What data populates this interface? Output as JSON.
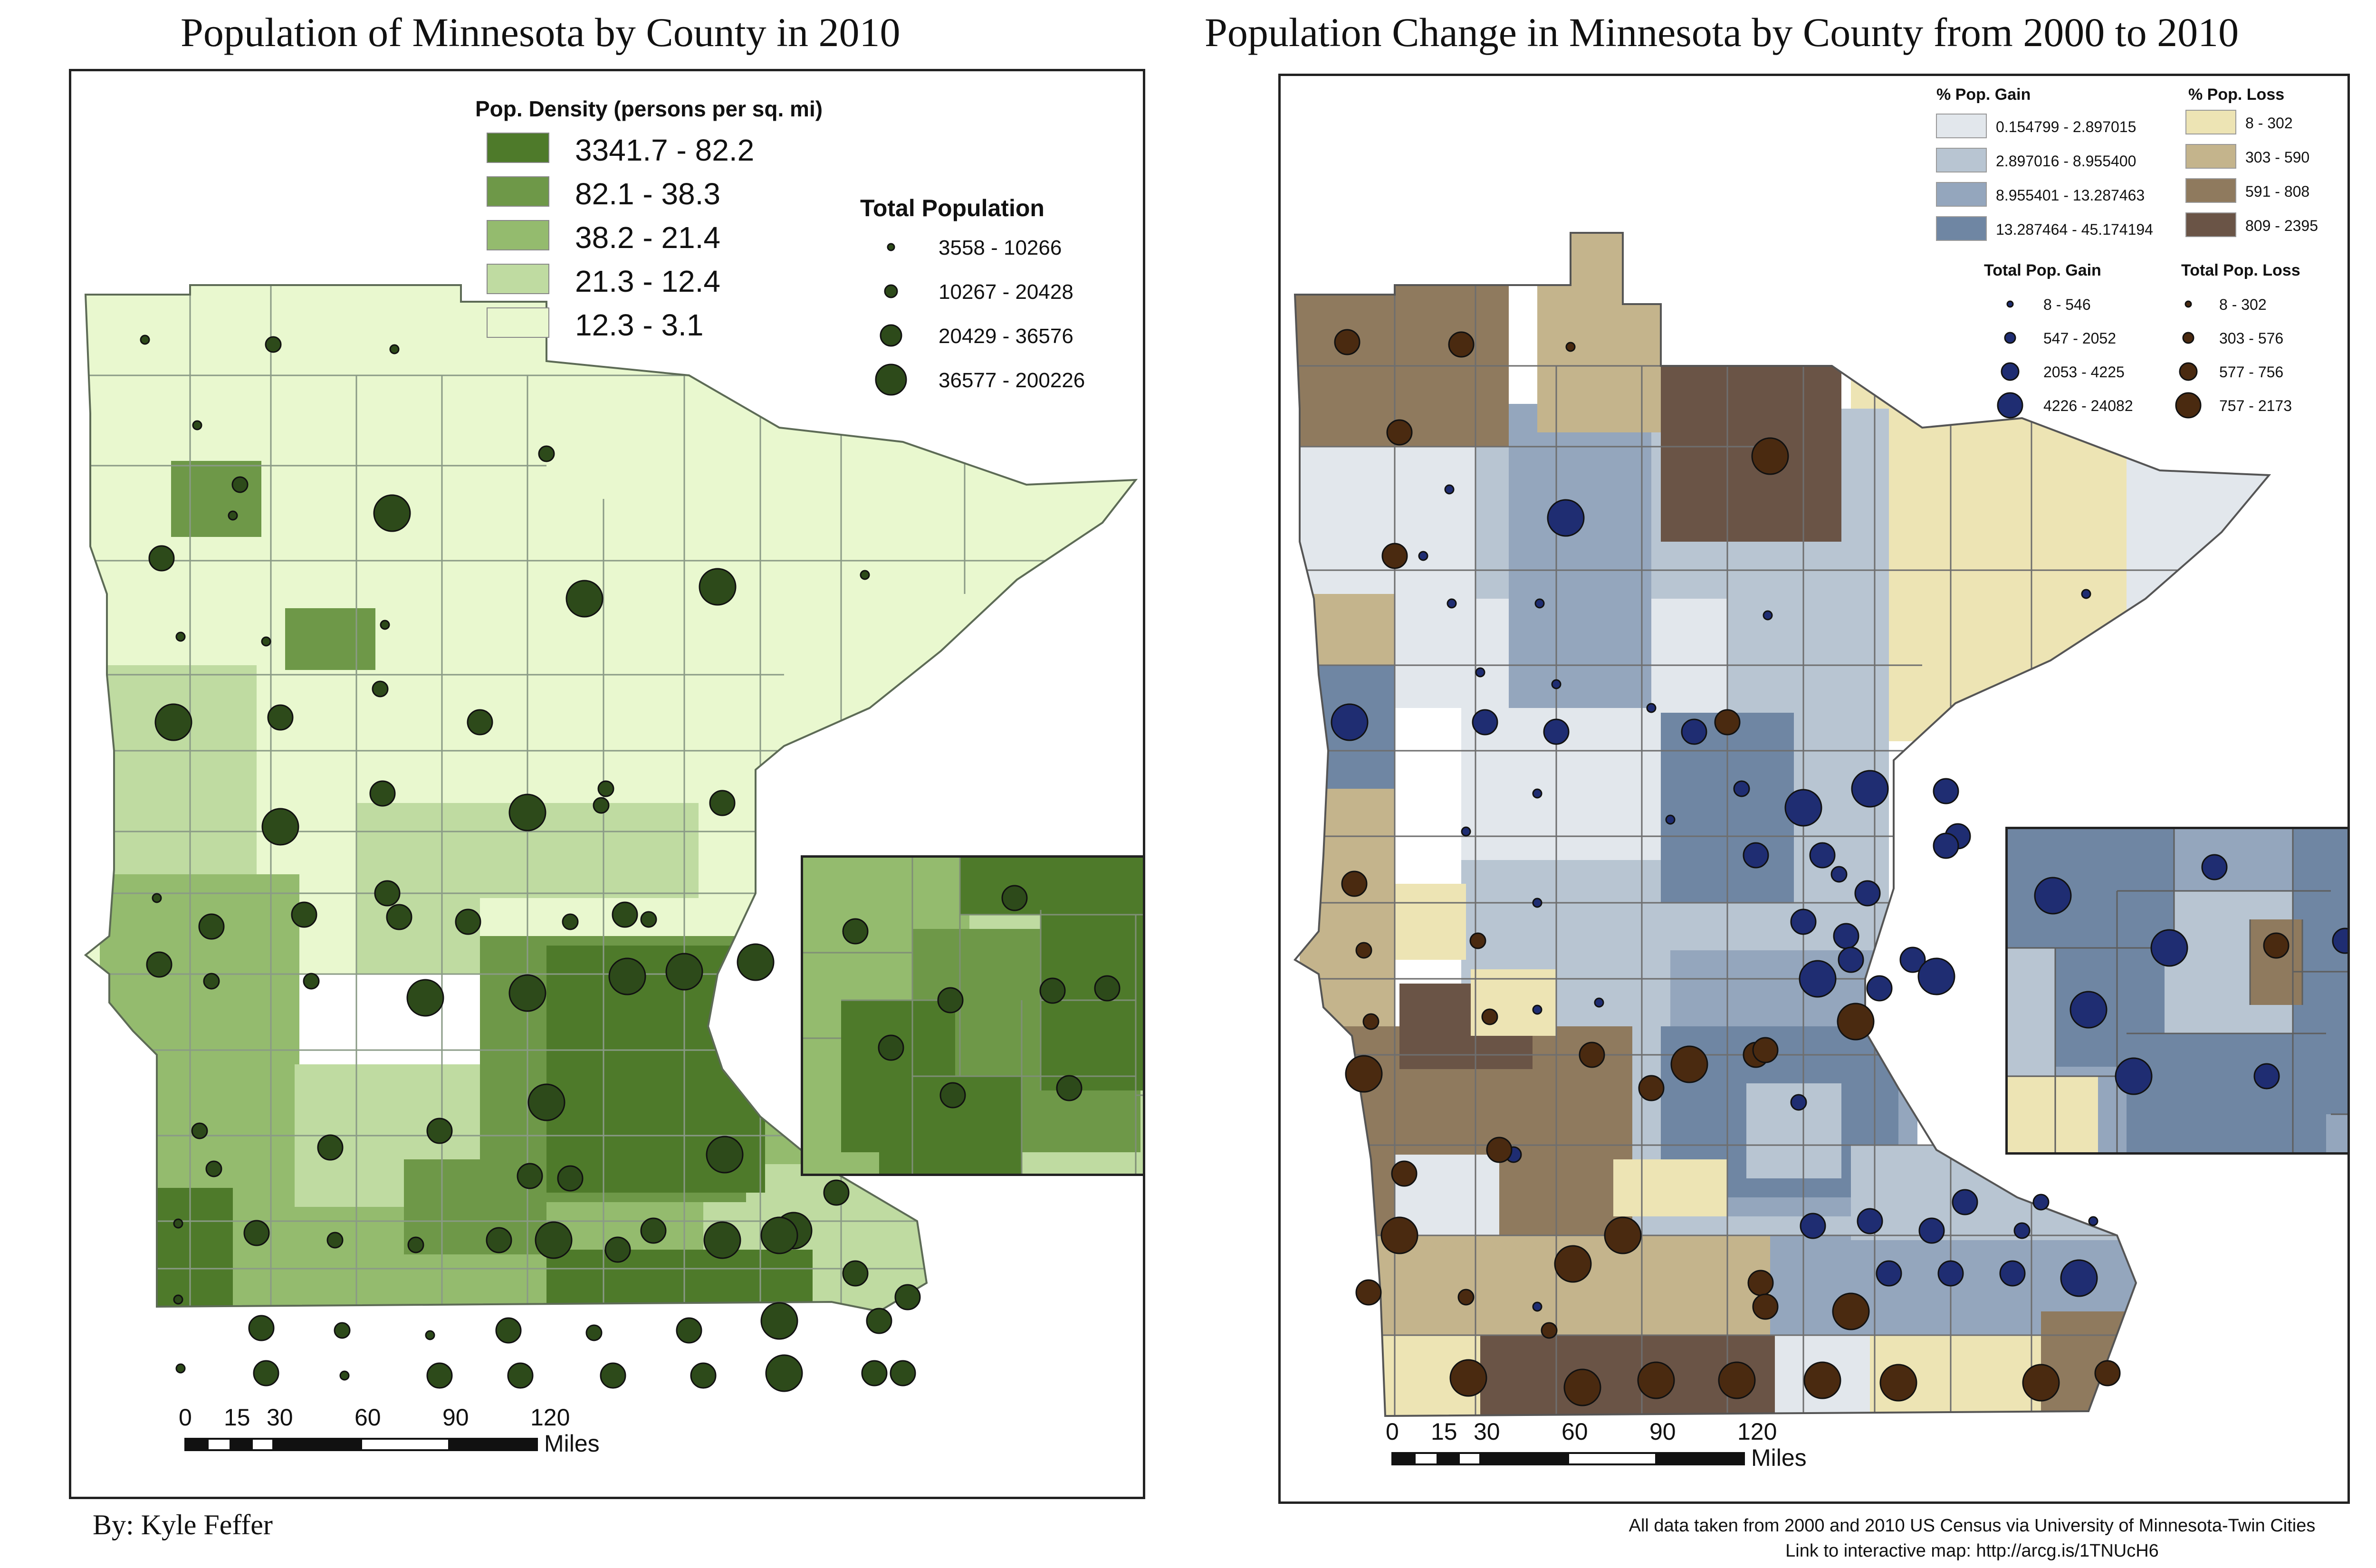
{
  "left": {
    "title": "Population of Minnesota by County in 2010",
    "density_legend": {
      "title": "Pop. Density (persons per sq. mi)",
      "classes": [
        {
          "label": "3341.7 - 82.2",
          "color": "#4e7a2a"
        },
        {
          "label": "82.1 - 38.3",
          "color": "#6e9848"
        },
        {
          "label": "38.2 - 21.4",
          "color": "#94bb6e"
        },
        {
          "label": "21.3 - 12.4",
          "color": "#bfdba1"
        },
        {
          "label": "12.3 - 3.1",
          "color": "#e9f8cf"
        }
      ]
    },
    "population_legend": {
      "title": "Total Population",
      "classes": [
        {
          "label": "3558 - 10266"
        },
        {
          "label": "10267 - 20428"
        },
        {
          "label": "20429 - 36576"
        },
        {
          "label": "36577 - 200226"
        }
      ],
      "symbol_color": "#2d4a1a"
    },
    "scale": {
      "ticks": [
        "0",
        "15",
        "30",
        "60",
        "90",
        "120"
      ],
      "unit": "Miles"
    }
  },
  "right": {
    "title": "Population Change in Minnesota by County from 2000 to 2010",
    "gain_legend": {
      "title": "% Pop. Gain",
      "classes": [
        {
          "label": "0.154799 - 2.897015",
          "color": "#e2e7ec"
        },
        {
          "label": "2.897016 - 8.955400",
          "color": "#b8c5d2"
        },
        {
          "label": "8.955401 - 13.287463",
          "color": "#94a6bd"
        },
        {
          "label": "13.287464 - 45.174194",
          "color": "#6f86a3"
        }
      ]
    },
    "loss_legend": {
      "title": "% Pop. Loss",
      "classes": [
        {
          "label": "8 - 302",
          "color": "#ede4b4"
        },
        {
          "label": "303 - 590",
          "color": "#c4b48c"
        },
        {
          "label": "591 - 808",
          "color": "#8f7a5e"
        },
        {
          "label": "809 - 2395",
          "color": "#6a5446"
        }
      ]
    },
    "gain_total_legend": {
      "title": "Total Pop. Gain",
      "classes": [
        {
          "label": "8 - 546"
        },
        {
          "label": "547 - 2052"
        },
        {
          "label": "2053 - 4225"
        },
        {
          "label": "4226 - 24082"
        }
      ],
      "symbol_color": "#1f2d72"
    },
    "loss_total_legend": {
      "title": "Total Pop. Loss",
      "classes": [
        {
          "label": "8 - 302"
        },
        {
          "label": "303 - 576"
        },
        {
          "label": "577 - 756"
        },
        {
          "label": "757 - 2173"
        }
      ],
      "symbol_color": "#4a2a10"
    },
    "scale": {
      "ticks": [
        "0",
        "15",
        "30",
        "60",
        "90",
        "120"
      ],
      "unit": "Miles"
    }
  },
  "footer": {
    "author": "By: Kyle Feffer",
    "source": "All data taken from 2000 and 2010 US Census via University of Minnesota-Twin Cities",
    "link": "Link to interactive map: http://arcg.is/1TNUcH6"
  }
}
